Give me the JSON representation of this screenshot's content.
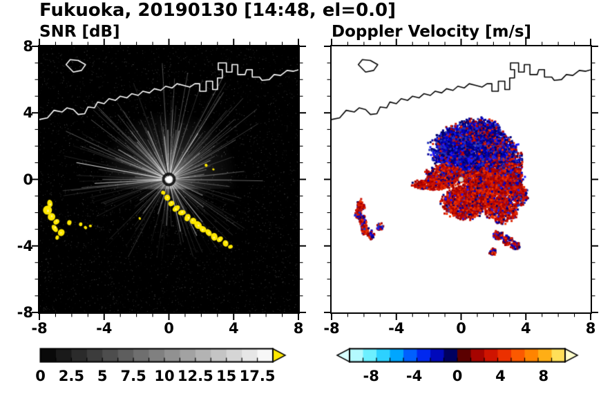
{
  "header": {
    "title": "Fukuoka, 20190130 [14:48, el=0.0]"
  },
  "panels": {
    "snr": {
      "title": "SNR [dB]"
    },
    "doppler": {
      "title": "Doppler Velocity [m/s]"
    }
  },
  "chart_data": [
    {
      "type": "heatmap",
      "title": "SNR [dB]",
      "xlim": [
        -8,
        8
      ],
      "ylim": [
        -8,
        8
      ],
      "xtick_values": [
        -8,
        -4,
        0,
        4,
        8
      ],
      "xtick_labels": [
        "-8",
        "-4",
        "0",
        "4",
        "8"
      ],
      "ytick_values": [
        8,
        4,
        0,
        -4,
        -8
      ],
      "ytick_labels": [
        "8",
        "4",
        "0",
        "-4",
        "-8"
      ],
      "minor_tick_step": 1,
      "background_color": "#000000",
      "coast_color": "#ffffff",
      "radar_center": [
        0,
        0
      ],
      "clutter_color": "#ffe800",
      "colorbar": {
        "range": [
          0,
          18.75
        ],
        "segment_step": 1.25,
        "tick_values": [
          0,
          2.5,
          5,
          7.5,
          10,
          12.5,
          15,
          17.5
        ],
        "tick_labels": [
          "0",
          "2.5",
          "5",
          "7.5",
          "10",
          "12.5",
          "15",
          "17.5"
        ],
        "colormap": "grayscale-black-to-white",
        "over_arrow_color": "#ffe800"
      },
      "bright_rays": [
        [
          170,
          5.8,
          0.85
        ],
        [
          183,
          4.6,
          0.6
        ],
        [
          150,
          3.6,
          0.55
        ],
        [
          131,
          3.0,
          0.5
        ],
        [
          114,
          3.2,
          0.55
        ],
        [
          96,
          2.6,
          0.5
        ],
        [
          78,
          3.0,
          0.45
        ],
        [
          57,
          3.3,
          0.5
        ],
        [
          40,
          2.5,
          0.45
        ],
        [
          24,
          2.8,
          0.4
        ],
        [
          8,
          2.2,
          0.35
        ],
        [
          215,
          2.2,
          0.45
        ],
        [
          232,
          2.6,
          0.4
        ],
        [
          252,
          2.2,
          0.45
        ],
        [
          267,
          2.8,
          0.4
        ],
        [
          283,
          3.2,
          0.5
        ],
        [
          297,
          3.8,
          0.55
        ],
        [
          309,
          3.3,
          0.5
        ],
        [
          322,
          2.7,
          0.45
        ],
        [
          335,
          2.3,
          0.4
        ]
      ],
      "dark_rays": [
        [
          103,
          3.4
        ],
        [
          121,
          3.0
        ],
        [
          88,
          2.6
        ],
        [
          146,
          3.2
        ]
      ],
      "high_snr_blobs": [
        [
          -7.35,
          -1.45,
          5
        ],
        [
          -7.5,
          -1.85,
          6
        ],
        [
          -7.25,
          -2.25,
          5
        ],
        [
          -6.95,
          -2.55,
          4
        ],
        [
          -7.05,
          -2.95,
          5
        ],
        [
          -6.65,
          -3.2,
          4
        ],
        [
          -6.9,
          -3.5,
          3
        ],
        [
          -6.15,
          -2.6,
          3
        ],
        [
          -5.45,
          -2.7,
          2.5
        ],
        [
          -5.15,
          -2.9,
          2
        ],
        [
          -4.85,
          -2.8,
          2
        ],
        [
          -0.35,
          -0.8,
          3
        ],
        [
          -0.1,
          -1.1,
          4
        ],
        [
          0.15,
          -1.45,
          4
        ],
        [
          0.45,
          -1.75,
          5
        ],
        [
          0.8,
          -2.0,
          5
        ],
        [
          1.15,
          -2.3,
          5
        ],
        [
          1.5,
          -2.5,
          4
        ],
        [
          1.8,
          -2.75,
          5
        ],
        [
          2.1,
          -3.0,
          5
        ],
        [
          2.45,
          -3.2,
          4
        ],
        [
          2.8,
          -3.45,
          5
        ],
        [
          3.15,
          -3.6,
          4
        ],
        [
          3.5,
          -3.85,
          4
        ],
        [
          3.8,
          -4.05,
          3
        ],
        [
          2.3,
          0.85,
          2
        ],
        [
          2.75,
          0.6,
          2
        ],
        [
          -1.8,
          -2.35,
          2
        ]
      ]
    },
    {
      "type": "heatmap",
      "title": "Doppler Velocity [m/s]",
      "xlim": [
        -8,
        8
      ],
      "ylim": [
        -8,
        8
      ],
      "xtick_values": [
        -8,
        -4,
        0,
        4,
        8
      ],
      "xtick_labels": [
        "-8",
        "-4",
        "0",
        "4",
        "8"
      ],
      "ytick_values": [
        8,
        4,
        0,
        -4,
        -8
      ],
      "ytick_labels": [],
      "minor_tick_step": 1,
      "background_color": "#ffffff",
      "coast_color": "#000000",
      "radar_center": [
        0,
        0
      ],
      "colorbar": {
        "range": [
          -10,
          10
        ],
        "segment_step": 1.25,
        "tick_values": [
          -8,
          -4,
          0,
          4,
          8
        ],
        "tick_labels": [
          "-8",
          "-4",
          "0",
          "4",
          "8"
        ],
        "colormap_stops": [
          [
            -10,
            "#d8ffff"
          ],
          [
            -8,
            "#66eeff"
          ],
          [
            -6,
            "#00bbff"
          ],
          [
            -4.5,
            "#0066ff"
          ],
          [
            -3,
            "#0022ee"
          ],
          [
            -1.5,
            "#0000aa"
          ],
          [
            -0.3,
            "#000044"
          ],
          [
            0.3,
            "#440000"
          ],
          [
            1.5,
            "#990000"
          ],
          [
            3,
            "#cc1100"
          ],
          [
            4.5,
            "#ee3300"
          ],
          [
            6,
            "#ff6600"
          ],
          [
            7.5,
            "#ff9900"
          ],
          [
            9,
            "#ffcc33"
          ],
          [
            10,
            "#ffff99"
          ]
        ],
        "under_arrow_color": "#d8ffff",
        "over_arrow_color": "#ffffcc"
      },
      "negative_palette": [
        "#000066",
        "#000099",
        "#0000cc",
        "#1a1aff",
        "#000080",
        "#2233bb"
      ],
      "positive_palette": [
        "#990000",
        "#bb0000",
        "#cc1100",
        "#dd2200",
        "#ee3300",
        "#aa0000"
      ],
      "velocity_ray": {
        "from": [
          -0.2,
          -0.05
        ],
        "to": [
          -2.9,
          -0.5
        ]
      },
      "echo_regions": [
        {
          "cx": 0.6,
          "cy": 1.8,
          "rx": 2.2,
          "ry": 1.5,
          "n": 2800,
          "red": 0.12
        },
        {
          "cx": 2.4,
          "cy": 1.3,
          "rx": 1.2,
          "ry": 1.2,
          "n": 1000,
          "red": 0.3
        },
        {
          "cx": 1.2,
          "cy": 2.9,
          "rx": 1.2,
          "ry": 0.7,
          "n": 500,
          "red": 0.25
        },
        {
          "cx": -0.6,
          "cy": 2.3,
          "rx": 0.8,
          "ry": 0.7,
          "n": 400,
          "red": 0.2
        },
        {
          "cx": 3.1,
          "cy": 0.2,
          "rx": 0.7,
          "ry": 1.0,
          "n": 500,
          "red": 0.55
        },
        {
          "cx": 1.7,
          "cy": -0.5,
          "rx": 1.7,
          "ry": 1.1,
          "n": 1700,
          "red": 0.85
        },
        {
          "cx": 0.3,
          "cy": -1.4,
          "rx": 1.4,
          "ry": 0.9,
          "n": 1100,
          "red": 0.8
        },
        {
          "cx": -1.0,
          "cy": 0.3,
          "rx": 1.1,
          "ry": 0.55,
          "n": 550,
          "red": 0.75
        },
        {
          "cx": -1.7,
          "cy": -0.3,
          "rx": 1.2,
          "ry": 0.3,
          "n": 350,
          "red": 0.9
        },
        {
          "cx": 2.5,
          "cy": -1.9,
          "rx": 0.9,
          "ry": 0.7,
          "n": 450,
          "red": 0.8
        },
        {
          "cx": 3.6,
          "cy": -0.9,
          "rx": 0.5,
          "ry": 0.6,
          "n": 250,
          "red": 0.7
        },
        {
          "cx": -6.2,
          "cy": -1.6,
          "rx": 0.22,
          "ry": 0.35,
          "n": 70,
          "red": 0.8
        },
        {
          "cx": -6.35,
          "cy": -2.1,
          "rx": 0.2,
          "ry": 0.3,
          "n": 60,
          "red": 0.75
        },
        {
          "cx": -6.05,
          "cy": -2.5,
          "rx": 0.2,
          "ry": 0.3,
          "n": 60,
          "red": 0.7
        },
        {
          "cx": -5.95,
          "cy": -3.0,
          "rx": 0.22,
          "ry": 0.35,
          "n": 70,
          "red": 0.75
        },
        {
          "cx": -5.55,
          "cy": -3.35,
          "rx": 0.18,
          "ry": 0.25,
          "n": 45,
          "red": 0.7
        },
        {
          "cx": -5.0,
          "cy": -2.85,
          "rx": 0.18,
          "ry": 0.2,
          "n": 40,
          "red": 0.6
        },
        {
          "cx": 2.3,
          "cy": -3.35,
          "rx": 0.3,
          "ry": 0.25,
          "n": 70,
          "red": 0.6
        },
        {
          "cx": 2.85,
          "cy": -3.65,
          "rx": 0.3,
          "ry": 0.28,
          "n": 70,
          "red": 0.55
        },
        {
          "cx": 3.35,
          "cy": -4.0,
          "rx": 0.28,
          "ry": 0.25,
          "n": 60,
          "red": 0.6
        },
        {
          "cx": 1.95,
          "cy": -4.35,
          "rx": 0.2,
          "ry": 0.2,
          "n": 40,
          "red": 0.65
        }
      ]
    }
  ],
  "coastline": {
    "island": [
      [
        -6.35,
        6.9
      ],
      [
        -6.1,
        7.2
      ],
      [
        -5.6,
        7.15
      ],
      [
        -5.15,
        6.9
      ],
      [
        -5.4,
        6.55
      ],
      [
        -5.9,
        6.45
      ],
      [
        -6.35,
        6.9
      ]
    ],
    "mainland": [
      [
        -8,
        3.6
      ],
      [
        -7.5,
        3.7
      ],
      [
        -7.1,
        4.15
      ],
      [
        -6.6,
        4.05
      ],
      [
        -6.3,
        4.3
      ],
      [
        -5.9,
        4.2
      ],
      [
        -5.6,
        3.9
      ],
      [
        -5.2,
        3.95
      ],
      [
        -5.0,
        4.35
      ],
      [
        -4.6,
        4.3
      ],
      [
        -4.4,
        4.65
      ],
      [
        -4.0,
        4.55
      ],
      [
        -3.7,
        4.85
      ],
      [
        -3.3,
        4.75
      ],
      [
        -3.0,
        5.0
      ],
      [
        -2.6,
        4.9
      ],
      [
        -2.3,
        5.15
      ],
      [
        -1.9,
        5.05
      ],
      [
        -1.6,
        5.3
      ],
      [
        -1.2,
        5.2
      ],
      [
        -0.9,
        5.45
      ],
      [
        -0.5,
        5.35
      ],
      [
        -0.2,
        5.6
      ],
      [
        0.2,
        5.5
      ],
      [
        0.5,
        5.75
      ],
      [
        0.9,
        5.65
      ],
      [
        1.3,
        5.55
      ],
      [
        1.6,
        5.75
      ],
      [
        1.9,
        5.75
      ],
      [
        1.9,
        5.3
      ],
      [
        2.3,
        5.3
      ],
      [
        2.3,
        5.9
      ],
      [
        2.7,
        5.9
      ],
      [
        2.7,
        5.4
      ],
      [
        3.0,
        5.4
      ],
      [
        3.0,
        6.1
      ],
      [
        3.3,
        6.1
      ],
      [
        3.3,
        6.6
      ],
      [
        3.05,
        6.6
      ],
      [
        3.05,
        7.0
      ],
      [
        3.55,
        7.0
      ],
      [
        3.55,
        6.45
      ],
      [
        3.9,
        6.45
      ],
      [
        3.9,
        6.9
      ],
      [
        4.25,
        6.9
      ],
      [
        4.25,
        6.3
      ],
      [
        4.7,
        6.3
      ],
      [
        4.8,
        6.6
      ],
      [
        5.15,
        6.6
      ],
      [
        5.15,
        6.15
      ],
      [
        5.6,
        6.15
      ],
      [
        5.75,
        5.95
      ],
      [
        6.2,
        6.0
      ],
      [
        6.5,
        6.3
      ],
      [
        6.9,
        6.25
      ],
      [
        7.3,
        6.55
      ],
      [
        7.7,
        6.5
      ],
      [
        8.05,
        6.6
      ]
    ]
  }
}
